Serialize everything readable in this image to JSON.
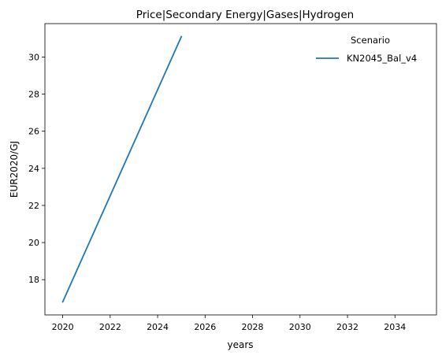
{
  "chart_data": {
    "type": "line",
    "title": "Price|Secondary Energy|Gases|Hydrogen",
    "xlabel": "years",
    "ylabel": "EUR2020/GJ",
    "xlim": [
      2019.25,
      2035.75
    ],
    "ylim": [
      16.1,
      31.8
    ],
    "xticks": [
      2020,
      2022,
      2024,
      2026,
      2028,
      2030,
      2032,
      2034
    ],
    "yticks": [
      18,
      20,
      22,
      24,
      26,
      28,
      30
    ],
    "grid": false,
    "legend": {
      "title": "Scenario",
      "placement": "top-right"
    },
    "series": [
      {
        "name": "KN2045_Bal_v4",
        "color": "#1f77b4",
        "x": [
          2020,
          2025
        ],
        "y": [
          16.8,
          31.1
        ]
      }
    ]
  }
}
